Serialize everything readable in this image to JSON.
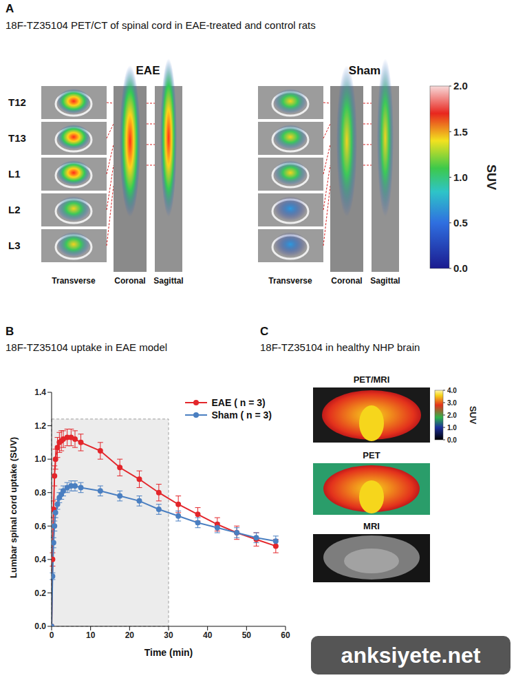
{
  "figure": {
    "panel_a": {
      "letter": "A",
      "title": "18F-TZ35104 PET/CT of spinal cord in EAE-treated and control rats",
      "groups": [
        "EAE",
        "Sham"
      ],
      "vertebrae": [
        "T12",
        "T13",
        "L1",
        "L2",
        "L3"
      ],
      "views": [
        "Transverse",
        "Coronal",
        "Sagittal"
      ],
      "colorbar": {
        "label": "SUV",
        "range": [
          0,
          2
        ],
        "ticks": [
          {
            "value": 0,
            "label": "0.0"
          },
          0.5,
          {
            "value": 1,
            "label": "1.0"
          },
          1.5,
          {
            "value": 2,
            "label": "2.0"
          }
        ]
      }
    },
    "panel_b": {
      "letter": "B"
    },
    "panel_c": {
      "letter": "C",
      "title": "18F-TZ35104 in healthy NHP brain",
      "images": [
        "PET/MRI",
        "PET",
        "MRI"
      ],
      "colorbar": {
        "label": "SUV",
        "range": [
          0,
          4
        ],
        "ticks": [
          {
            "value": 0,
            "label": "0.0"
          },
          {
            "value": 1,
            "label": "1.0"
          },
          {
            "value": 2,
            "label": "2.0"
          },
          {
            "value": 3,
            "label": "3.0"
          },
          {
            "value": 4,
            "label": "4.0"
          }
        ]
      }
    },
    "watermark": "anksiyete.net"
  },
  "chart_data": {
    "type": "line",
    "title": "18F-TZ35104 uptake in EAE model",
    "x_label": "Time (min)",
    "y_label": "Lumbar spinal cord uptake (SUV)",
    "x": [
      0,
      0.25,
      0.5,
      0.75,
      1,
      1.5,
      2,
      2.5,
      3,
      4,
      5,
      6,
      7.5,
      12.5,
      17.5,
      22.5,
      27.5,
      32.5,
      37.5,
      42.5,
      47.5,
      52.5,
      57.5
    ],
    "xlim": [
      0,
      60
    ],
    "xticks": [
      0,
      10,
      20,
      30,
      40,
      50,
      60
    ],
    "ylim": [
      0,
      1.4
    ],
    "yticks": [
      {
        "value": 0,
        "label": "0.0"
      },
      0.2,
      0.4,
      0.6,
      0.8,
      {
        "value": 1,
        "label": "1.0"
      },
      1.2,
      1.4
    ],
    "grid": false,
    "legend": "upper right",
    "marker": "circle",
    "shaded_region": {
      "x": [
        0,
        30
      ],
      "y": [
        0,
        1.24
      ]
    },
    "series": [
      {
        "name": "EAE ( n = 3)",
        "color": "#e3262b",
        "values": [
          0,
          0.4,
          0.7,
          0.9,
          1.0,
          1.07,
          1.1,
          1.11,
          1.12,
          1.13,
          1.13,
          1.12,
          1.1,
          1.05,
          0.95,
          0.88,
          0.8,
          0.73,
          0.67,
          0.61,
          0.56,
          0.52,
          0.48
        ],
        "errors": [
          0,
          0.04,
          0.05,
          0.06,
          0.06,
          0.06,
          0.06,
          0.06,
          0.05,
          0.05,
          0.05,
          0.05,
          0.05,
          0.05,
          0.05,
          0.05,
          0.05,
          0.05,
          0.04,
          0.04,
          0.04,
          0.04,
          0.04
        ]
      },
      {
        "name": "Sham ( n = 3)",
        "color": "#4a7fc1",
        "values": [
          0,
          0.3,
          0.5,
          0.6,
          0.68,
          0.73,
          0.77,
          0.79,
          0.81,
          0.83,
          0.84,
          0.84,
          0.83,
          0.81,
          0.78,
          0.75,
          0.7,
          0.66,
          0.62,
          0.59,
          0.56,
          0.53,
          0.51
        ],
        "errors": [
          0,
          0.02,
          0.03,
          0.03,
          0.03,
          0.03,
          0.03,
          0.03,
          0.03,
          0.03,
          0.03,
          0.03,
          0.03,
          0.03,
          0.03,
          0.03,
          0.03,
          0.03,
          0.03,
          0.03,
          0.03,
          0.03,
          0.03
        ]
      }
    ]
  }
}
